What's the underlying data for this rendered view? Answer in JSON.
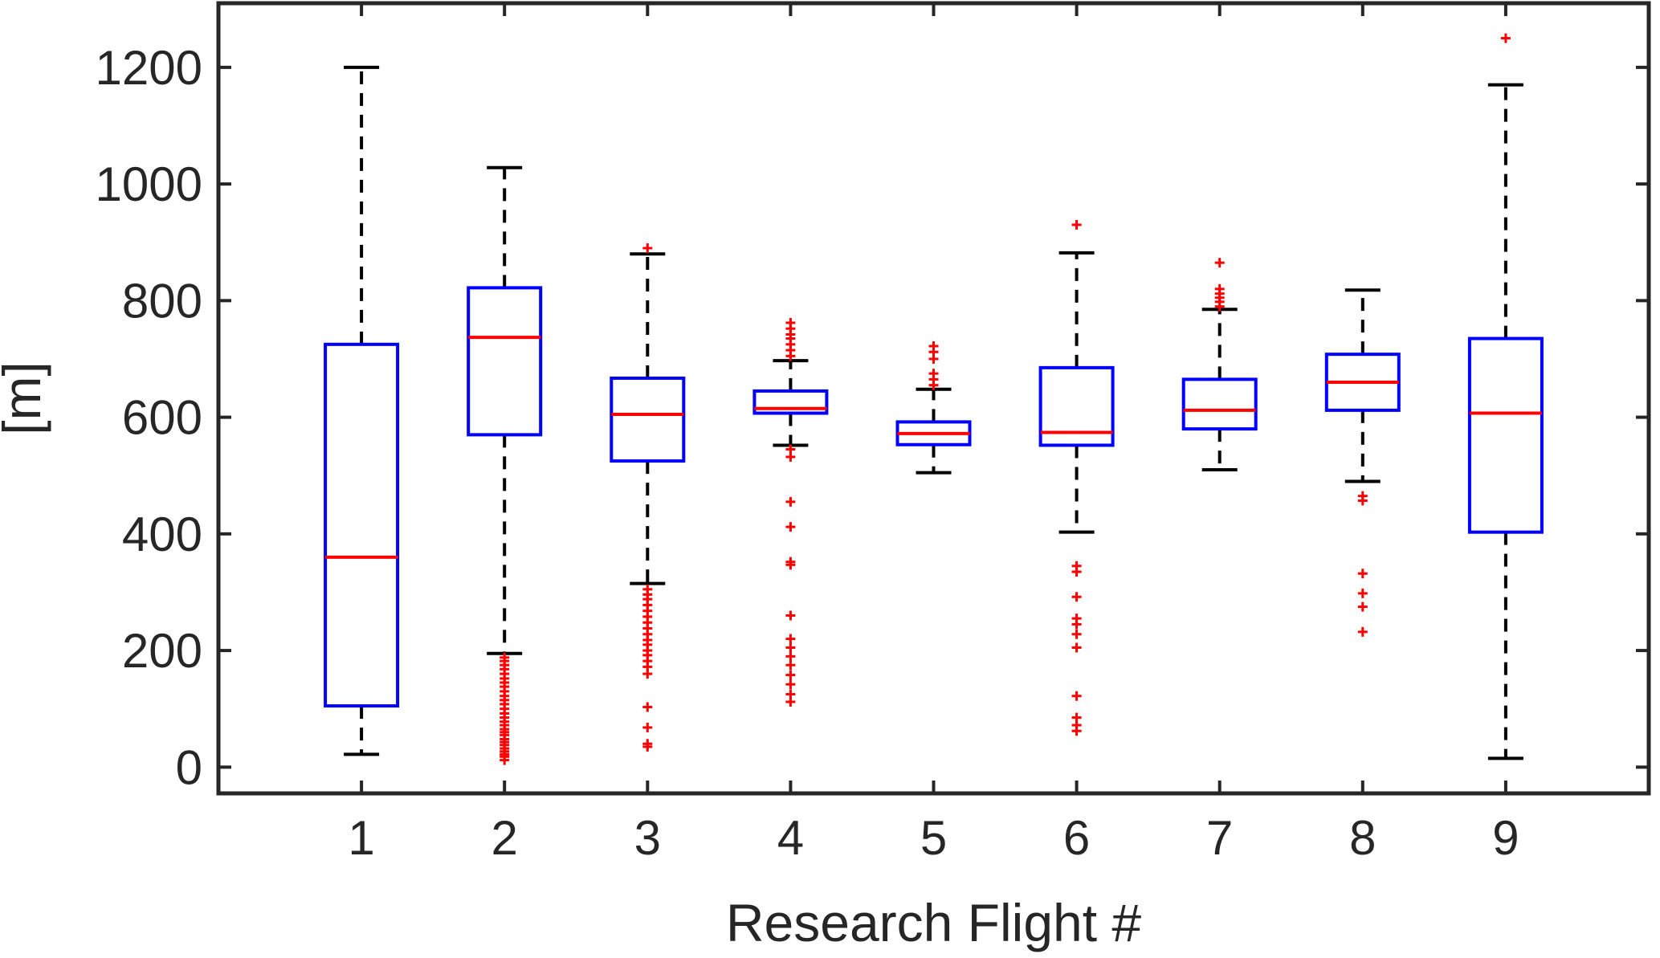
{
  "chart_data": {
    "type": "box",
    "title": "",
    "xlabel": "Research Flight #",
    "ylabel": "[m]",
    "categories": [
      "1",
      "2",
      "3",
      "4",
      "5",
      "6",
      "7",
      "8",
      "9"
    ],
    "xlim": [
      0,
      10
    ],
    "ylim": [
      -45,
      1310
    ],
    "yticks": [
      0,
      200,
      400,
      600,
      800,
      1000,
      1200
    ],
    "grid": false,
    "colors": {
      "box": "#0000ff",
      "median": "#ff0000",
      "whisker": "#000000",
      "outlier": "#ff0000",
      "axes": "#262626"
    },
    "boxes": [
      {
        "category": "1",
        "whisker_low": 22,
        "q1": 105,
        "median": 360,
        "q3": 725,
        "whisker_high": 1200,
        "outliers": []
      },
      {
        "category": "2",
        "whisker_low": 195,
        "q1": 570,
        "median": 737,
        "q3": 822,
        "whisker_high": 1028,
        "outliers": [
          12,
          18,
          22,
          27,
          32,
          38,
          43,
          48,
          55,
          60,
          65,
          72,
          78,
          85,
          92,
          100,
          108,
          115,
          122,
          130,
          138,
          145,
          152,
          160,
          168,
          175,
          182,
          188
        ]
      },
      {
        "category": "3",
        "whisker_low": 315,
        "q1": 525,
        "median": 605,
        "q3": 667,
        "whisker_high": 880,
        "outliers": [
          35,
          40,
          68,
          103,
          160,
          172,
          182,
          192,
          200,
          210,
          218,
          228,
          238,
          248,
          258,
          268,
          278,
          288,
          296,
          305,
          890
        ]
      },
      {
        "category": "4",
        "whisker_low": 552,
        "q1": 607,
        "median": 615,
        "q3": 645,
        "whisker_high": 697,
        "outliers": [
          112,
          125,
          142,
          158,
          175,
          190,
          205,
          220,
          260,
          347,
          352,
          412,
          455,
          532,
          545,
          705,
          715,
          725,
          735,
          742,
          752,
          762
        ]
      },
      {
        "category": "5",
        "whisker_low": 505,
        "q1": 553,
        "median": 572,
        "q3": 592,
        "whisker_high": 648,
        "outliers": [
          655,
          665,
          675,
          700,
          712,
          722
        ]
      },
      {
        "category": "6",
        "whisker_low": 403,
        "q1": 552,
        "median": 574,
        "q3": 685,
        "whisker_high": 882,
        "outliers": [
          62,
          72,
          85,
          122,
          205,
          228,
          245,
          255,
          292,
          335,
          345,
          930
        ]
      },
      {
        "category": "7",
        "whisker_low": 510,
        "q1": 580,
        "median": 612,
        "q3": 665,
        "whisker_high": 785,
        "outliers": [
          790,
          798,
          805,
          812,
          820,
          865
        ]
      },
      {
        "category": "8",
        "whisker_low": 490,
        "q1": 612,
        "median": 660,
        "q3": 708,
        "whisker_high": 818,
        "outliers": [
          232,
          275,
          298,
          332,
          457,
          465
        ]
      },
      {
        "category": "9",
        "whisker_low": 15,
        "q1": 403,
        "median": 607,
        "q3": 735,
        "whisker_high": 1170,
        "outliers": [
          1250
        ]
      }
    ]
  }
}
